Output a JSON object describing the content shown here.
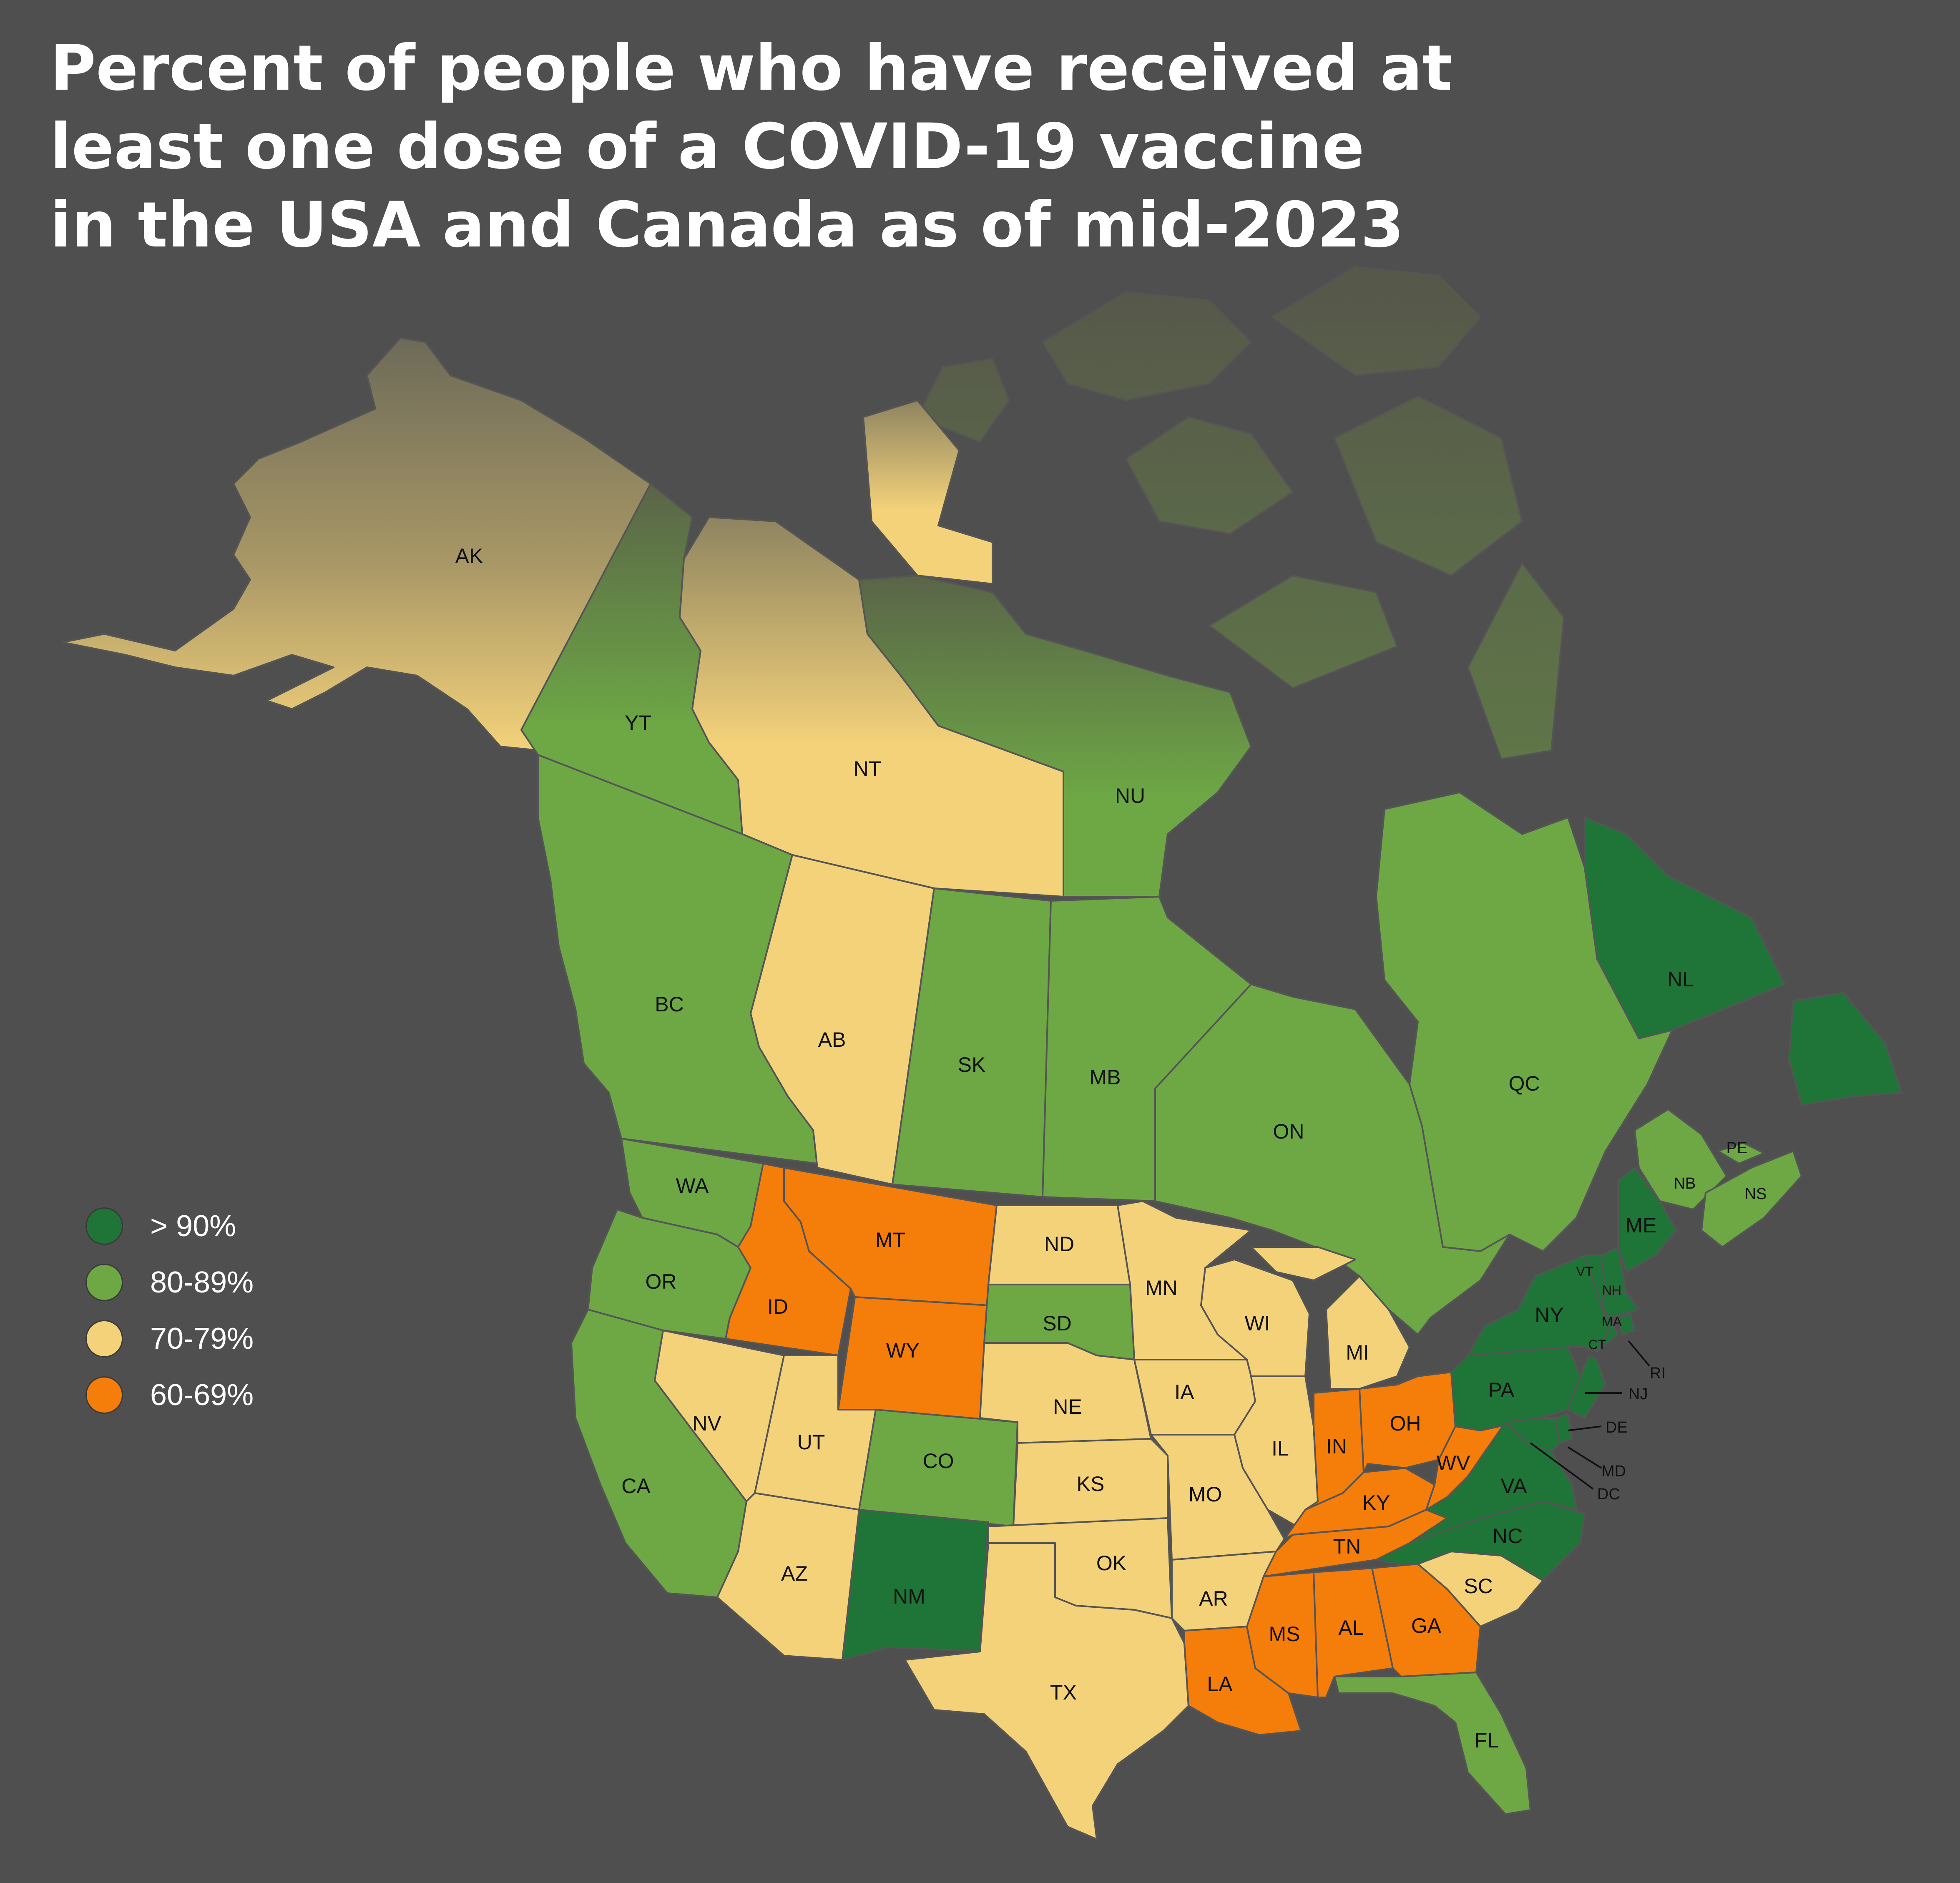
{
  "title": {
    "line1": "Percent of people who have received at",
    "line2": "least one dose of a COVID-19 vaccine",
    "line3": "in the USA and Canada as of mid-2023"
  },
  "colors": {
    "background": "#4f4f4f",
    "gt90": "#1f7437",
    "c80_89": "#6da845",
    "c70_79": "#f4d27a",
    "c60_69": "#f57d09",
    "border": "#555555"
  },
  "legend": [
    {
      "label": "> 90%",
      "color": "#1f7437"
    },
    {
      "label": "80-89%",
      "color": "#6da845"
    },
    {
      "label": "70-79%",
      "color": "#f4d27a"
    },
    {
      "label": "60-69%",
      "color": "#f57d09"
    }
  ],
  "regions": {
    "AK": {
      "label": "AK",
      "category": "70-79%"
    },
    "YT": {
      "label": "YT",
      "category": "80-89%"
    },
    "NT": {
      "label": "NT",
      "category": "70-79%"
    },
    "NU": {
      "label": "NU",
      "category": "80-89%"
    },
    "BC": {
      "label": "BC",
      "category": "80-89%"
    },
    "AB": {
      "label": "AB",
      "category": "70-79%"
    },
    "SK": {
      "label": "SK",
      "category": "80-89%"
    },
    "MB": {
      "label": "MB",
      "category": "80-89%"
    },
    "ON": {
      "label": "ON",
      "category": "80-89%"
    },
    "QC": {
      "label": "QC",
      "category": "80-89%"
    },
    "NL": {
      "label": "NL",
      "category": "> 90%"
    },
    "NB": {
      "label": "NB",
      "category": "80-89%"
    },
    "NS": {
      "label": "NS",
      "category": "80-89%"
    },
    "PE": {
      "label": "PE",
      "category": "80-89%"
    },
    "WA": {
      "label": "WA",
      "category": "80-89%"
    },
    "OR": {
      "label": "OR",
      "category": "80-89%"
    },
    "CA": {
      "label": "CA",
      "category": "80-89%"
    },
    "ID": {
      "label": "ID",
      "category": "60-69%"
    },
    "MT": {
      "label": "MT",
      "category": "60-69%"
    },
    "WY": {
      "label": "WY",
      "category": "60-69%"
    },
    "NV": {
      "label": "NV",
      "category": "70-79%"
    },
    "UT": {
      "label": "UT",
      "category": "70-79%"
    },
    "CO": {
      "label": "CO",
      "category": "80-89%"
    },
    "AZ": {
      "label": "AZ",
      "category": "70-79%"
    },
    "NM": {
      "label": "NM",
      "category": "> 90%"
    },
    "ND": {
      "label": "ND",
      "category": "70-79%"
    },
    "SD": {
      "label": "SD",
      "category": "80-89%"
    },
    "NE": {
      "label": "NE",
      "category": "70-79%"
    },
    "KS": {
      "label": "KS",
      "category": "70-79%"
    },
    "OK": {
      "label": "OK",
      "category": "70-79%"
    },
    "TX": {
      "label": "TX",
      "category": "70-79%"
    },
    "MN": {
      "label": "MN",
      "category": "70-79%"
    },
    "IA": {
      "label": "IA",
      "category": "70-79%"
    },
    "MO": {
      "label": "MO",
      "category": "70-79%"
    },
    "AR": {
      "label": "AR",
      "category": "70-79%"
    },
    "LA": {
      "label": "LA",
      "category": "60-69%"
    },
    "WI": {
      "label": "WI",
      "category": "70-79%"
    },
    "IL": {
      "label": "IL",
      "category": "70-79%"
    },
    "MI": {
      "label": "MI",
      "category": "70-79%"
    },
    "IN": {
      "label": "IN",
      "category": "60-69%"
    },
    "OH": {
      "label": "OH",
      "category": "60-69%"
    },
    "KY": {
      "label": "KY",
      "category": "60-69%"
    },
    "TN": {
      "label": "TN",
      "category": "60-69%"
    },
    "MS": {
      "label": "MS",
      "category": "60-69%"
    },
    "AL": {
      "label": "AL",
      "category": "60-69%"
    },
    "GA": {
      "label": "GA",
      "category": "60-69%"
    },
    "FL": {
      "label": "FL",
      "category": "80-89%"
    },
    "SC": {
      "label": "SC",
      "category": "70-79%"
    },
    "NC": {
      "label": "NC",
      "category": "> 90%"
    },
    "VA": {
      "label": "VA",
      "category": "> 90%"
    },
    "WV": {
      "label": "WV",
      "category": "60-69%"
    },
    "PA": {
      "label": "PA",
      "category": "> 90%"
    },
    "NY": {
      "label": "NY",
      "category": "> 90%"
    },
    "ME": {
      "label": "ME",
      "category": "> 90%"
    },
    "VT": {
      "label": "VT",
      "category": "> 90%"
    },
    "NH": {
      "label": "NH",
      "category": "> 90%"
    },
    "MA": {
      "label": "MA",
      "category": "> 90%"
    },
    "CT": {
      "label": "CT",
      "category": "> 90%"
    },
    "RI": {
      "label": "RI",
      "category": "> 90%"
    },
    "NJ": {
      "label": "NJ",
      "category": "> 90%"
    },
    "DE": {
      "label": "DE",
      "category": "> 90%"
    },
    "MD": {
      "label": "MD",
      "category": "> 90%"
    },
    "DC": {
      "label": "DC",
      "category": "> 90%"
    }
  }
}
